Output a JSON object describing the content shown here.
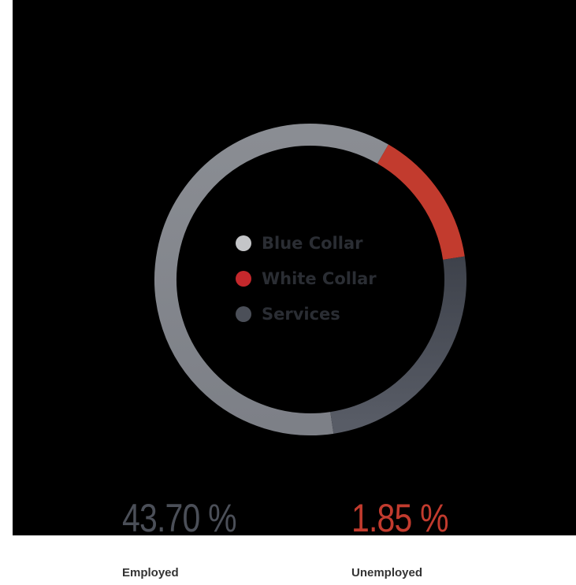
{
  "chart_data": {
    "type": "pie",
    "variant": "donut",
    "categories": [
      "Blue Collar",
      "White Collar",
      "Services"
    ],
    "values": [
      60.7,
      14.3,
      25.0
    ],
    "unit": "%",
    "colors": [
      "#85888e",
      "#c23b2e",
      "#4b4f58"
    ],
    "legend_placement": "center"
  },
  "stats": {
    "employed": {
      "value": "43.70 %",
      "label": "Employed",
      "color": "#4b4f58"
    },
    "unemployed": {
      "value": "1.85 %",
      "label": "Unemployed",
      "color": "#c23b2e"
    }
  }
}
